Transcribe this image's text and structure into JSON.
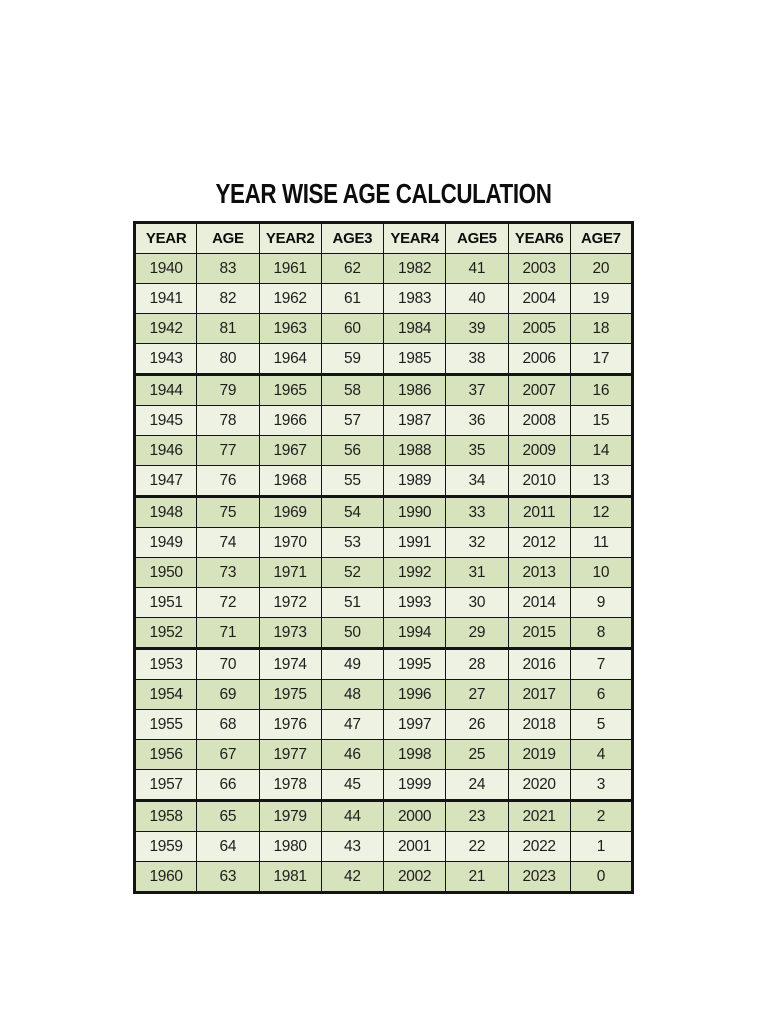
{
  "page": {
    "title": "YEAR WISE AGE CALCULATION"
  },
  "colors": {
    "row_green": "#d6e3bc",
    "row_light": "#edf2e2",
    "header_bg": "#e9efdb",
    "border": "#141414",
    "text": "#1e1e1e"
  },
  "table": {
    "headers": [
      "YEAR",
      "AGE",
      "YEAR2",
      "AGE3",
      "YEAR4",
      "AGE5",
      "YEAR6",
      "AGE7"
    ],
    "rows": [
      [
        "1940",
        "83",
        "1961",
        "62",
        "1982",
        "41",
        "2003",
        "20"
      ],
      [
        "1941",
        "82",
        "1962",
        "61",
        "1983",
        "40",
        "2004",
        "19"
      ],
      [
        "1942",
        "81",
        "1963",
        "60",
        "1984",
        "39",
        "2005",
        "18"
      ],
      [
        "1943",
        "80",
        "1964",
        "59",
        "1985",
        "38",
        "2006",
        "17"
      ],
      [
        "1944",
        "79",
        "1965",
        "58",
        "1986",
        "37",
        "2007",
        "16"
      ],
      [
        "1945",
        "78",
        "1966",
        "57",
        "1987",
        "36",
        "2008",
        "15"
      ],
      [
        "1946",
        "77",
        "1967",
        "56",
        "1988",
        "35",
        "2009",
        "14"
      ],
      [
        "1947",
        "76",
        "1968",
        "55",
        "1989",
        "34",
        "2010",
        "13"
      ],
      [
        "1948",
        "75",
        "1969",
        "54",
        "1990",
        "33",
        "2011",
        "12"
      ],
      [
        "1949",
        "74",
        "1970",
        "53",
        "1991",
        "32",
        "2012",
        "11"
      ],
      [
        "1950",
        "73",
        "1971",
        "52",
        "1992",
        "31",
        "2013",
        "10"
      ],
      [
        "1951",
        "72",
        "1972",
        "51",
        "1993",
        "30",
        "2014",
        "9"
      ],
      [
        "1952",
        "71",
        "1973",
        "50",
        "1994",
        "29",
        "2015",
        "8"
      ],
      [
        "1953",
        "70",
        "1974",
        "49",
        "1995",
        "28",
        "2016",
        "7"
      ],
      [
        "1954",
        "69",
        "1975",
        "48",
        "1996",
        "27",
        "2017",
        "6"
      ],
      [
        "1955",
        "68",
        "1976",
        "47",
        "1997",
        "26",
        "2018",
        "5"
      ],
      [
        "1956",
        "67",
        "1977",
        "46",
        "1998",
        "25",
        "2019",
        "4"
      ],
      [
        "1957",
        "66",
        "1978",
        "45",
        "1999",
        "24",
        "2020",
        "3"
      ],
      [
        "1958",
        "65",
        "1979",
        "44",
        "2000",
        "23",
        "2021",
        "2"
      ],
      [
        "1959",
        "64",
        "1980",
        "43",
        "2001",
        "22",
        "2022",
        "1"
      ],
      [
        "1960",
        "63",
        "1981",
        "42",
        "2002",
        "21",
        "2023",
        "0"
      ]
    ]
  }
}
